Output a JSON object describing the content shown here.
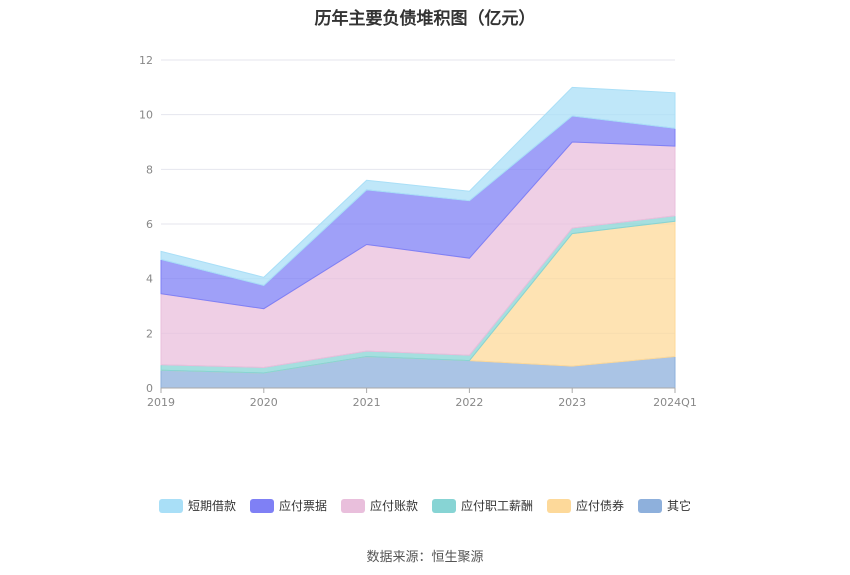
{
  "chart_data": {
    "type": "area",
    "stacked": true,
    "title": "历年主要负债堆积图（亿元）",
    "categories": [
      "2019",
      "2020",
      "2021",
      "2022",
      "2023",
      "2024Q1"
    ],
    "ylim": [
      0,
      12
    ],
    "yticks": [
      "0",
      "2",
      "4",
      "6",
      "8",
      "10",
      "12"
    ],
    "grid": true,
    "legend_position": "bottom",
    "series": [
      {
        "name": "其它",
        "color": "#8eb0dc",
        "values": [
          0.65,
          0.55,
          1.15,
          1.0,
          0.8,
          1.15
        ]
      },
      {
        "name": "应付债券",
        "color": "#fdd99a",
        "values": [
          0,
          0,
          0,
          0,
          4.85,
          4.95
        ]
      },
      {
        "name": "应付职工薪酬",
        "color": "#87d4d4",
        "values": [
          0.2,
          0.2,
          0.2,
          0.2,
          0.2,
          0.2
        ]
      },
      {
        "name": "应付账款",
        "color": "#e9bfdc",
        "values": [
          2.6,
          2.15,
          3.9,
          3.55,
          3.15,
          2.55
        ]
      },
      {
        "name": "应付票据",
        "color": "#7f80f5",
        "values": [
          1.25,
          0.85,
          2.0,
          2.1,
          0.95,
          0.65
        ]
      },
      {
        "name": "短期借款",
        "color": "#a9dff7",
        "values": [
          0.3,
          0.3,
          0.35,
          0.35,
          1.05,
          1.3
        ]
      }
    ],
    "legend_order": [
      "短期借款",
      "应付票据",
      "应付账款",
      "应付职工薪酬",
      "应付债券",
      "其它"
    ]
  },
  "source_text": "数据来源：恒生聚源"
}
